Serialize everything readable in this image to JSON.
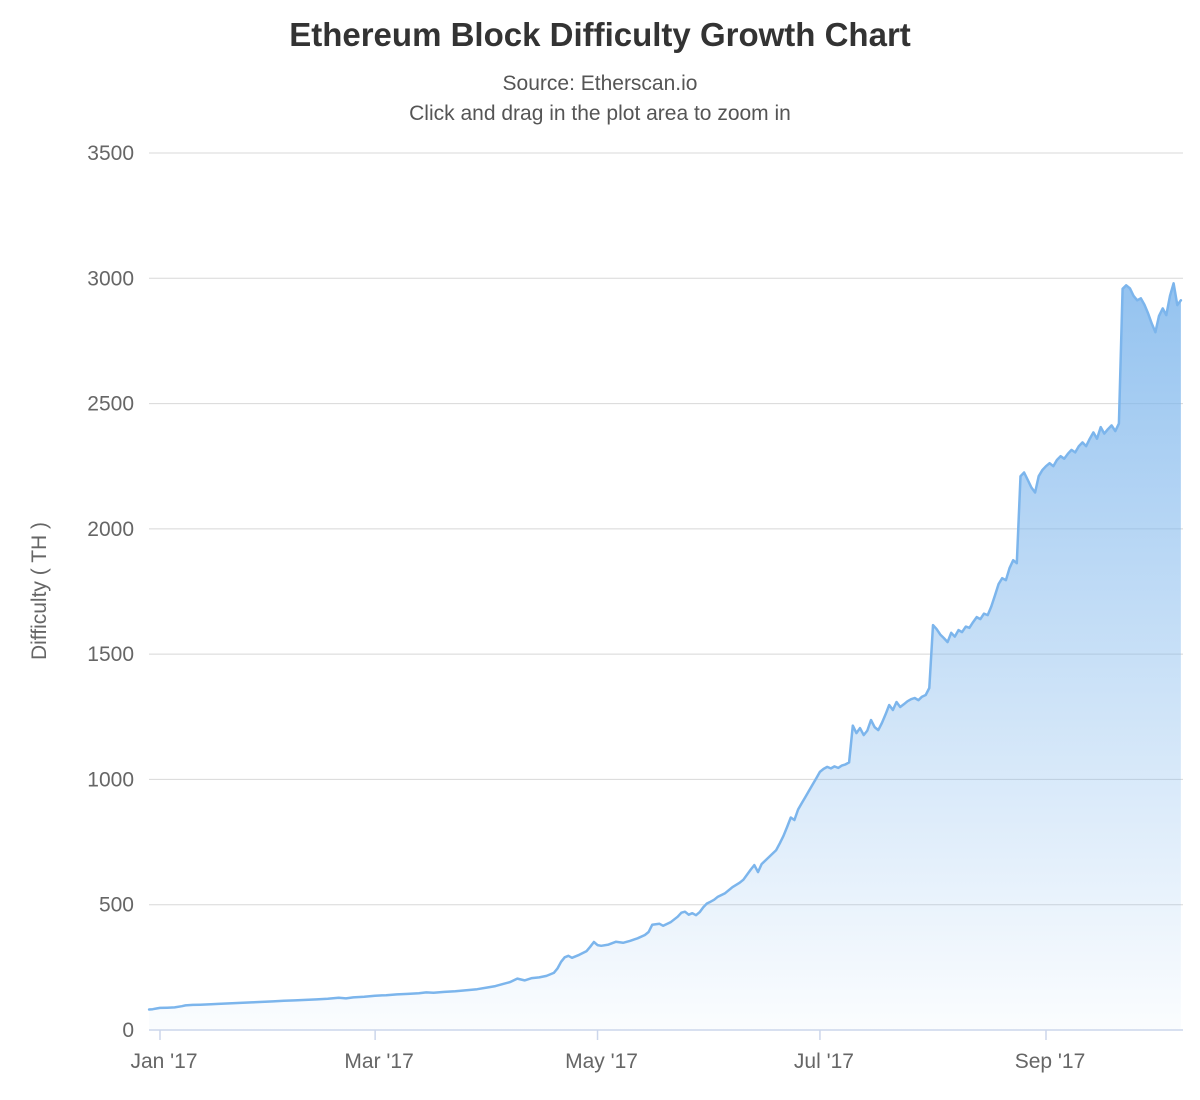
{
  "chart": {
    "title": "Ethereum Block Difficulty Growth Chart",
    "subtitle_source": "Source: Etherscan.io",
    "subtitle_hint": "Click and drag in the plot area to zoom in"
  },
  "chart_data": {
    "type": "area",
    "title": "Ethereum Block Difficulty Growth Chart",
    "subtitle": [
      "Source: Etherscan.io",
      "Click and drag in the plot area to zoom in"
    ],
    "series_name": "Difficulty",
    "ylabel": "Difficulty ( TH )",
    "xlabel": "",
    "x_unit": "days_since_2017_01_01",
    "x_tick_labels": [
      "Jan '17",
      "Mar '17",
      "May '17",
      "Jul '17",
      "Sep '17"
    ],
    "x_tick_days": [
      0,
      59,
      120,
      181,
      243
    ],
    "y_ticks": [
      0,
      500,
      1000,
      1500,
      2000,
      2500,
      3000,
      3500
    ],
    "ylim": [
      0,
      3500
    ],
    "grid": true,
    "legend": false,
    "colors": {
      "line": "#7cb5ec",
      "fill_top": "rgba(124,181,236,0.95)",
      "fill_bottom": "rgba(124,181,236,0.03)",
      "grid": "#d8d8d8",
      "axis_line": "#ccd6eb",
      "label": "#666666",
      "title": "#333333",
      "subtitle": "#555555"
    },
    "points": [
      [
        -3,
        82
      ],
      [
        -2,
        83
      ],
      [
        -1,
        86
      ],
      [
        0,
        88
      ],
      [
        2,
        89
      ],
      [
        4,
        90
      ],
      [
        6,
        95
      ],
      [
        7,
        98
      ],
      [
        9,
        100
      ],
      [
        11,
        101
      ],
      [
        14,
        103
      ],
      [
        16,
        104
      ],
      [
        19,
        106
      ],
      [
        22,
        108
      ],
      [
        25,
        110
      ],
      [
        28,
        112
      ],
      [
        31,
        114
      ],
      [
        34,
        117
      ],
      [
        37,
        118
      ],
      [
        40,
        120
      ],
      [
        43,
        122
      ],
      [
        46,
        125
      ],
      [
        49,
        129
      ],
      [
        51,
        126
      ],
      [
        53,
        130
      ],
      [
        56,
        133
      ],
      [
        59,
        137
      ],
      [
        62,
        139
      ],
      [
        65,
        142
      ],
      [
        68,
        144
      ],
      [
        71,
        147
      ],
      [
        73,
        150
      ],
      [
        75,
        149
      ],
      [
        78,
        152
      ],
      [
        81,
        155
      ],
      [
        84,
        159
      ],
      [
        87,
        163
      ],
      [
        90,
        170
      ],
      [
        92,
        175
      ],
      [
        94,
        183
      ],
      [
        96,
        191
      ],
      [
        98,
        205
      ],
      [
        100,
        198
      ],
      [
        102,
        207
      ],
      [
        104,
        210
      ],
      [
        106,
        216
      ],
      [
        108,
        228
      ],
      [
        109,
        245
      ],
      [
        110,
        272
      ],
      [
        111,
        290
      ],
      [
        112,
        296
      ],
      [
        113,
        288
      ],
      [
        115,
        300
      ],
      [
        117,
        315
      ],
      [
        118,
        332
      ],
      [
        119,
        351
      ],
      [
        120,
        339
      ],
      [
        121,
        336
      ],
      [
        123,
        341
      ],
      [
        125,
        352
      ],
      [
        127,
        348
      ],
      [
        129,
        356
      ],
      [
        131,
        366
      ],
      [
        133,
        379
      ],
      [
        134,
        391
      ],
      [
        135,
        420
      ],
      [
        137,
        424
      ],
      [
        138,
        416
      ],
      [
        140,
        430
      ],
      [
        142,
        452
      ],
      [
        143,
        468
      ],
      [
        144,
        472
      ],
      [
        145,
        460
      ],
      [
        146,
        466
      ],
      [
        147,
        458
      ],
      [
        148,
        470
      ],
      [
        149,
        490
      ],
      [
        150,
        505
      ],
      [
        151,
        512
      ],
      [
        152,
        520
      ],
      [
        153,
        532
      ],
      [
        155,
        546
      ],
      [
        157,
        570
      ],
      [
        159,
        588
      ],
      [
        160,
        600
      ],
      [
        162,
        640
      ],
      [
        163,
        658
      ],
      [
        164,
        630
      ],
      [
        165,
        662
      ],
      [
        167,
        690
      ],
      [
        169,
        718
      ],
      [
        170,
        745
      ],
      [
        171,
        775
      ],
      [
        172,
        810
      ],
      [
        173,
        848
      ],
      [
        174,
        838
      ],
      [
        175,
        880
      ],
      [
        176,
        905
      ],
      [
        177,
        930
      ],
      [
        178,
        955
      ],
      [
        179,
        980
      ],
      [
        180,
        1005
      ],
      [
        181,
        1030
      ],
      [
        182,
        1042
      ],
      [
        183,
        1050
      ],
      [
        184,
        1044
      ],
      [
        185,
        1052
      ],
      [
        186,
        1046
      ],
      [
        187,
        1055
      ],
      [
        188,
        1060
      ],
      [
        189,
        1068
      ],
      [
        190,
        1215
      ],
      [
        191,
        1185
      ],
      [
        192,
        1205
      ],
      [
        193,
        1177
      ],
      [
        194,
        1195
      ],
      [
        195,
        1237
      ],
      [
        196,
        1209
      ],
      [
        197,
        1197
      ],
      [
        198,
        1225
      ],
      [
        199,
        1260
      ],
      [
        200,
        1297
      ],
      [
        201,
        1277
      ],
      [
        202,
        1309
      ],
      [
        203,
        1289
      ],
      [
        204,
        1300
      ],
      [
        205,
        1312
      ],
      [
        206,
        1320
      ],
      [
        207,
        1325
      ],
      [
        208,
        1316
      ],
      [
        209,
        1330
      ],
      [
        210,
        1337
      ],
      [
        211,
        1365
      ],
      [
        212,
        1616
      ],
      [
        213,
        1600
      ],
      [
        214,
        1578
      ],
      [
        215,
        1564
      ],
      [
        216,
        1548
      ],
      [
        217,
        1585
      ],
      [
        218,
        1570
      ],
      [
        219,
        1596
      ],
      [
        220,
        1588
      ],
      [
        221,
        1610
      ],
      [
        222,
        1605
      ],
      [
        223,
        1628
      ],
      [
        224,
        1648
      ],
      [
        225,
        1640
      ],
      [
        226,
        1662
      ],
      [
        227,
        1656
      ],
      [
        228,
        1690
      ],
      [
        229,
        1735
      ],
      [
        230,
        1780
      ],
      [
        231,
        1803
      ],
      [
        232,
        1795
      ],
      [
        233,
        1843
      ],
      [
        234,
        1875
      ],
      [
        235,
        1863
      ],
      [
        236,
        2210
      ],
      [
        237,
        2225
      ],
      [
        238,
        2195
      ],
      [
        239,
        2165
      ],
      [
        240,
        2145
      ],
      [
        241,
        2210
      ],
      [
        242,
        2235
      ],
      [
        243,
        2250
      ],
      [
        244,
        2262
      ],
      [
        245,
        2250
      ],
      [
        246,
        2275
      ],
      [
        247,
        2290
      ],
      [
        248,
        2280
      ],
      [
        249,
        2300
      ],
      [
        250,
        2315
      ],
      [
        251,
        2305
      ],
      [
        252,
        2330
      ],
      [
        253,
        2345
      ],
      [
        254,
        2330
      ],
      [
        255,
        2360
      ],
      [
        256,
        2385
      ],
      [
        257,
        2360
      ],
      [
        258,
        2406
      ],
      [
        259,
        2380
      ],
      [
        260,
        2398
      ],
      [
        261,
        2413
      ],
      [
        262,
        2390
      ],
      [
        263,
        2420
      ],
      [
        264,
        2958
      ],
      [
        265,
        2972
      ],
      [
        266,
        2960
      ],
      [
        267,
        2930
      ],
      [
        268,
        2912
      ],
      [
        269,
        2920
      ],
      [
        270,
        2895
      ],
      [
        271,
        2860
      ],
      [
        272,
        2820
      ],
      [
        273,
        2785
      ],
      [
        274,
        2850
      ],
      [
        275,
        2880
      ],
      [
        276,
        2853
      ],
      [
        277,
        2930
      ],
      [
        278,
        2980
      ],
      [
        279,
        2893
      ],
      [
        280,
        2912
      ]
    ]
  }
}
